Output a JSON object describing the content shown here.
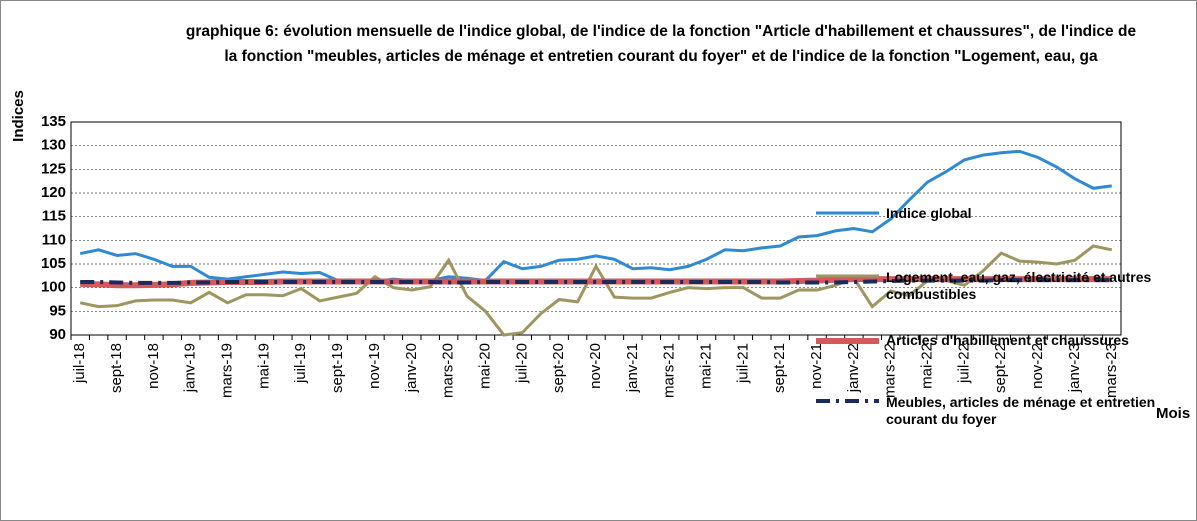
{
  "chart_data": {
    "type": "line",
    "title": "graphique 6: évolution mensuelle de l'indice global, de l'indice de la fonction \"Article d'habillement et chaussures\", de l'indice de la fonction  \"meubles, articles de ménage et entretien courant du foyer\" et de l'indice de la fonction \"Logement, eau, ga",
    "y_label": "Indices",
    "x_label": "Mois",
    "categories": [
      "juil-18",
      null,
      "sept-18",
      null,
      "nov-18",
      null,
      "janv-19",
      null,
      "mars-19",
      null,
      "mai-19",
      null,
      "juil-19",
      null,
      "sept-19",
      null,
      "nov-19",
      null,
      "janv-20",
      null,
      "mars-20",
      null,
      "mai-20",
      null,
      "juil-20",
      null,
      "sept-20",
      null,
      "nov-20",
      null,
      "janv-21",
      null,
      "mars-21",
      null,
      "mai-21",
      null,
      "juil-21",
      null,
      "sept-21",
      null,
      "nov-21",
      null,
      "janv-22",
      null,
      "mars-22",
      null,
      "mai-22",
      null,
      "juil-22",
      null,
      "sept-22",
      null,
      "nov-22",
      null,
      "janv-23",
      null,
      "mars-23"
    ],
    "ylim": [
      90,
      135
    ],
    "yticks": [
      90,
      95,
      100,
      105,
      110,
      115,
      120,
      125,
      130,
      135
    ],
    "grid": true,
    "series": [
      {
        "name": "Indice global",
        "color": "#2f8ad3",
        "values": [
          107.2,
          108,
          106.8,
          107.2,
          106,
          104.5,
          104.5,
          102.2,
          101.8,
          102.3,
          102.8,
          103.3,
          103,
          103.2,
          101.5,
          101.5,
          101.3,
          101.8,
          101.5,
          101.5,
          102.3,
          102,
          101.5,
          105.5,
          104,
          104.5,
          105.8,
          106,
          106.7,
          106,
          104,
          104.2,
          103.8,
          104.5,
          106,
          108,
          107.8,
          108.4,
          108.8,
          110.7,
          111,
          112,
          112.5,
          111.8,
          114.5,
          118.5,
          122.3,
          124.5,
          127,
          128,
          128.5,
          128.8,
          127.5,
          125.5,
          123,
          121,
          121.5
        ]
      },
      {
        "name": "Logement, eau, gaz, électricité et autres combustibles",
        "color": "#9e9660",
        "values": [
          96.8,
          96,
          96.2,
          97.2,
          97.4,
          97.4,
          96.8,
          99,
          96.8,
          98.5,
          98.5,
          98.3,
          99.8,
          97.2,
          98,
          98.8,
          102.3,
          100,
          99.5,
          100.2,
          105.8,
          98.2,
          95,
          90,
          90.5,
          94.5,
          97.5,
          97,
          104.5,
          98,
          97.8,
          97.8,
          99,
          100,
          99.8,
          100,
          100,
          97.8,
          97.8,
          99.5,
          99.5,
          100.5,
          102,
          96,
          99.3,
          98.3,
          101.5,
          101.5,
          100.5,
          103.5,
          107.3,
          105.6,
          105.4,
          105,
          105.8,
          108.8,
          108
        ]
      },
      {
        "name": "Articles d'habillement et chaussures",
        "color": "#d45a5a",
        "values": [
          100.8,
          100.7,
          100.5,
          100.5,
          100.6,
          100.7,
          101,
          101.1,
          101.2,
          101.2,
          101.2,
          101.3,
          101.3,
          101.3,
          101.3,
          101.3,
          101.3,
          101.3,
          101.3,
          101.3,
          101.3,
          101.3,
          101.3,
          101.3,
          101.3,
          101.3,
          101.3,
          101.3,
          101.3,
          101.3,
          101.3,
          101.3,
          101.3,
          101.3,
          101.3,
          101.3,
          101.3,
          101.3,
          101.3,
          101.4,
          101.5,
          101.7,
          101.8,
          101.8,
          101.8,
          101.8,
          101.8,
          101.8,
          101.8,
          101.8,
          101.8,
          101.8,
          101.8,
          101.8,
          101.8,
          101.8,
          101.8
        ]
      },
      {
        "name": "Meubles, articles de ménage et entretien courant du foyer",
        "color": "#1b2b5e",
        "values": [
          101.2,
          101.2,
          101.1,
          101,
          101,
          101,
          101.1,
          101.1,
          101.2,
          101.2,
          101.2,
          101.2,
          101.2,
          101.2,
          101.2,
          101.2,
          101.2,
          101.2,
          101.2,
          101.2,
          101.1,
          101.1,
          101.2,
          101.2,
          101.2,
          101.2,
          101.2,
          101.2,
          101.2,
          101.2,
          101.2,
          101.2,
          101.2,
          101.2,
          101.2,
          101.2,
          101.2,
          101.2,
          101.1,
          101.1,
          101.1,
          101.1,
          101.2,
          101.3,
          101.4,
          101.5,
          101.5,
          101.5,
          101.5,
          101.5,
          101.6,
          101.6,
          101.6,
          101.6,
          101.6,
          101.6,
          101.6
        ]
      }
    ]
  }
}
